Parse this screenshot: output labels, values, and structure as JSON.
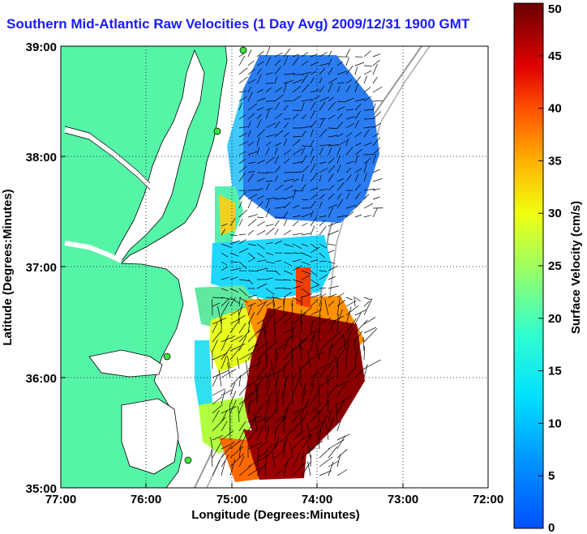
{
  "title": "Southern Mid-Atlantic Raw Velocities (1 Day Avg) 2009/12/31 1900 GMT",
  "map": {
    "xlabel": "Longitude (Degrees:Minutes)",
    "ylabel": "Latitude (Degrees:Minutes)",
    "x_ticks": [
      "77:00",
      "76:00",
      "75:00",
      "74:00",
      "73:00",
      "72:00"
    ],
    "y_ticks": [
      "39:00",
      "38:00",
      "37:00",
      "36:00",
      "35:00"
    ],
    "lon_range": [
      -77,
      -72
    ],
    "lat_range": [
      35,
      39
    ],
    "grid": "dotted",
    "land_color": "#55f5a8",
    "water_color": "#ffffff"
  },
  "colorbar": {
    "label": "Surface Velocity (cm/s)",
    "ticks": [
      "0",
      "5",
      "10",
      "15",
      "20",
      "25",
      "30",
      "35",
      "40",
      "45",
      "50"
    ],
    "range": [
      0,
      50
    ],
    "colormap": "jet"
  }
}
